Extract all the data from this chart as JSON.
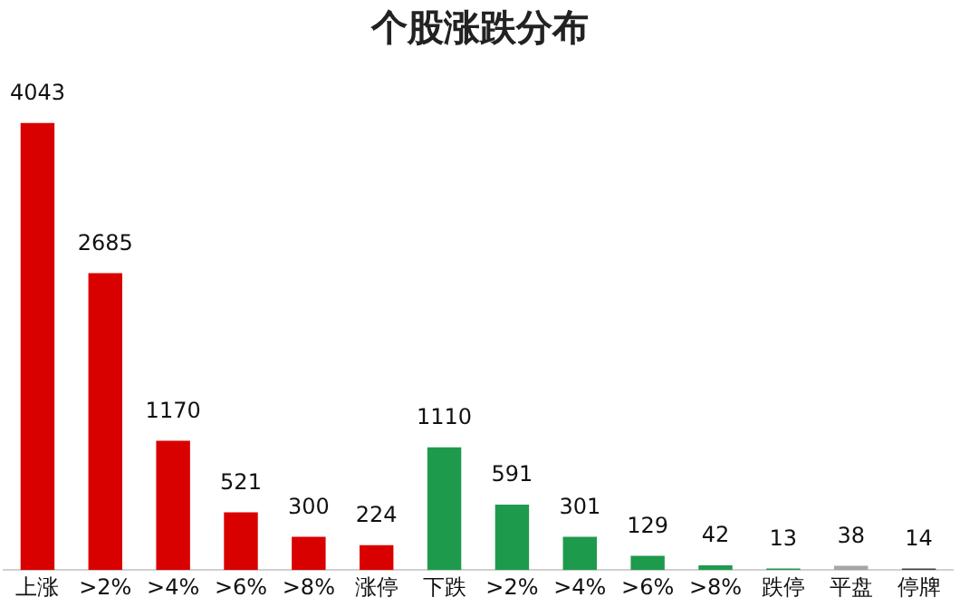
{
  "chart_data": {
    "type": "bar",
    "title": "个股涨跌分布",
    "categories": [
      "上涨",
      ">2%",
      ">4%",
      ">6%",
      ">8%",
      "涨停",
      "下跌",
      ">2%",
      ">4%",
      ">6%",
      ">8%",
      "跌停",
      "平盘",
      "停牌"
    ],
    "values": [
      4043,
      2685,
      1170,
      521,
      300,
      224,
      1110,
      591,
      301,
      129,
      42,
      13,
      38,
      14
    ],
    "colors": [
      "#d90000",
      "#d90000",
      "#d90000",
      "#d90000",
      "#d90000",
      "#d90000",
      "#1e9a4c",
      "#1e9a4c",
      "#1e9a4c",
      "#1e9a4c",
      "#1e9a4c",
      "#1e9a4c",
      "#a6a6a6",
      "#404040"
    ],
    "data_labels": true,
    "tick_labels": "x",
    "grid": false,
    "legend": false
  }
}
